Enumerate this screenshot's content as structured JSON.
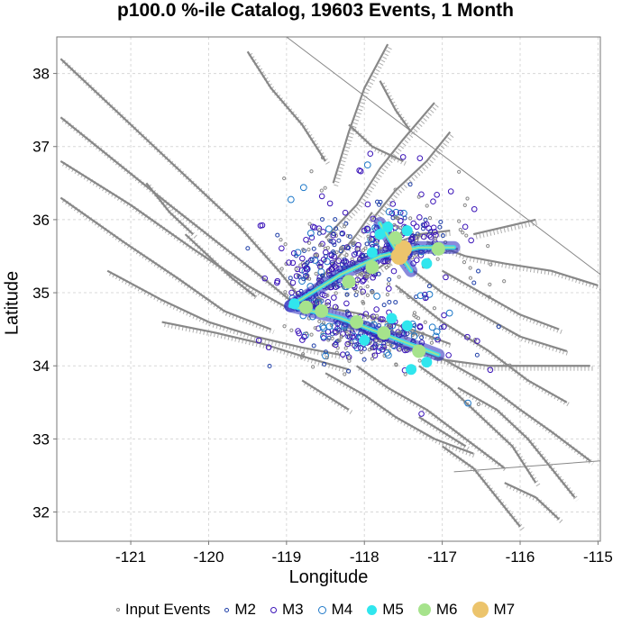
{
  "chart_data": {
    "type": "scatter",
    "title": "p100.0 %-ile Catalog, 19603 Events, 1 Month",
    "xlabel": "Longitude",
    "ylabel": "Latitude",
    "xlim": [
      -121.95,
      -114.97
    ],
    "ylim": [
      31.6,
      38.5
    ],
    "xticks": [
      -121,
      -120,
      -119,
      -118,
      -117,
      -116,
      -115
    ],
    "yticks": [
      32,
      33,
      34,
      35,
      36,
      37,
      38
    ],
    "grid": true,
    "legend_position": "bottom",
    "legend": [
      {
        "label": "Input Events",
        "color": "#888888",
        "style": "hollow",
        "size": 2
      },
      {
        "label": "M2",
        "color": "#1f3fa8",
        "style": "hollow",
        "size": 2.5
      },
      {
        "label": "M3",
        "color": "#3b14b8",
        "style": "hollow",
        "size": 3.5
      },
      {
        "label": "M4",
        "color": "#1e78c8",
        "style": "hollow",
        "size": 4.5
      },
      {
        "label": "M5",
        "color": "#30e6ee",
        "style": "filled",
        "size": 5.5
      },
      {
        "label": "M6",
        "color": "#a6e38c",
        "style": "filled",
        "size": 7
      },
      {
        "label": "M7",
        "color": "#ecc46c",
        "style": "filled",
        "size": 9
      }
    ],
    "faults_color": "#888888",
    "faults": [
      [
        [
          -121.9,
          38.2
        ],
        [
          -121.3,
          37.6
        ],
        [
          -120.8,
          37.1
        ],
        [
          -120.2,
          36.5
        ],
        [
          -119.6,
          35.9
        ],
        [
          -119.1,
          35.3
        ],
        [
          -118.8,
          34.9
        ],
        [
          -118.3,
          34.6
        ],
        [
          -117.6,
          34.3
        ],
        [
          -117.0,
          34.1
        ],
        [
          -116.5,
          33.8
        ],
        [
          -116.0,
          33.4
        ],
        [
          -115.6,
          33.1
        ],
        [
          -115.1,
          32.7
        ]
      ],
      [
        [
          -121.9,
          37.4
        ],
        [
          -121.2,
          36.8
        ],
        [
          -120.5,
          36.2
        ],
        [
          -119.9,
          35.7
        ],
        [
          -119.3,
          35.2
        ],
        [
          -118.9,
          34.85
        ]
      ],
      [
        [
          -121.9,
          36.8
        ],
        [
          -121.0,
          36.2
        ],
        [
          -120.2,
          35.6
        ],
        [
          -119.5,
          35.1
        ],
        [
          -119.0,
          34.8
        ]
      ],
      [
        [
          -121.9,
          36.3
        ],
        [
          -121.1,
          35.7
        ],
        [
          -120.4,
          35.2
        ],
        [
          -119.8,
          34.75
        ],
        [
          -119.2,
          34.5
        ]
      ],
      [
        [
          -121.3,
          35.3
        ],
        [
          -120.6,
          34.9
        ],
        [
          -120.0,
          34.6
        ],
        [
          -119.4,
          34.4
        ],
        [
          -118.8,
          34.25
        ],
        [
          -118.3,
          34.15
        ]
      ],
      [
        [
          -120.6,
          34.6
        ],
        [
          -119.9,
          34.45
        ],
        [
          -119.3,
          34.3
        ],
        [
          -118.7,
          34.1
        ],
        [
          -118.2,
          33.95
        ]
      ],
      [
        [
          -118.95,
          34.8
        ],
        [
          -118.3,
          35.3
        ],
        [
          -117.8,
          35.6
        ],
        [
          -117.3,
          35.8
        ],
        [
          -116.9,
          35.85
        ]
      ],
      [
        [
          -118.5,
          35.75
        ],
        [
          -118.1,
          36.2
        ],
        [
          -117.8,
          36.7
        ],
        [
          -117.5,
          37.1
        ],
        [
          -117.1,
          37.6
        ]
      ],
      [
        [
          -118.4,
          36.5
        ],
        [
          -118.2,
          37.2
        ],
        [
          -118.0,
          37.8
        ],
        [
          -117.7,
          38.4
        ]
      ],
      [
        [
          -119.5,
          38.3
        ],
        [
          -119.2,
          37.8
        ],
        [
          -118.8,
          37.3
        ],
        [
          -118.5,
          36.8
        ]
      ],
      [
        [
          -117.9,
          36.0
        ],
        [
          -117.6,
          36.4
        ],
        [
          -117.2,
          36.8
        ],
        [
          -116.9,
          37.2
        ]
      ],
      [
        [
          -117.2,
          35.7
        ],
        [
          -116.7,
          35.5
        ],
        [
          -116.2,
          35.4
        ],
        [
          -115.6,
          35.3
        ],
        [
          -115.0,
          35.1
        ]
      ],
      [
        [
          -117.5,
          35.4
        ],
        [
          -117.0,
          35.0
        ],
        [
          -116.5,
          34.7
        ],
        [
          -116.0,
          34.4
        ],
        [
          -115.4,
          34.2
        ]
      ],
      [
        [
          -117.6,
          35.1
        ],
        [
          -117.0,
          34.6
        ],
        [
          -116.4,
          34.2
        ],
        [
          -115.9,
          33.8
        ],
        [
          -115.4,
          33.5
        ]
      ],
      [
        [
          -117.0,
          35.3
        ],
        [
          -116.5,
          35.0
        ],
        [
          -116.0,
          34.7
        ],
        [
          -115.5,
          34.5
        ]
      ],
      [
        [
          -118.5,
          33.9
        ],
        [
          -118.0,
          33.6
        ],
        [
          -117.6,
          33.3
        ],
        [
          -117.1,
          33.0
        ],
        [
          -116.6,
          32.8
        ]
      ],
      [
        [
          -118.1,
          34.0
        ],
        [
          -117.7,
          33.7
        ],
        [
          -117.2,
          33.4
        ],
        [
          -116.7,
          33.0
        ],
        [
          -116.2,
          32.6
        ]
      ],
      [
        [
          -117.3,
          34.0
        ],
        [
          -116.9,
          33.7
        ],
        [
          -116.5,
          33.3
        ],
        [
          -116.1,
          32.9
        ],
        [
          -115.8,
          32.4
        ]
      ],
      [
        [
          -116.8,
          33.7
        ],
        [
          -116.3,
          33.4
        ],
        [
          -115.9,
          33.0
        ],
        [
          -115.6,
          32.6
        ],
        [
          -115.3,
          32.2
        ]
      ],
      [
        [
          -118.0,
          35.2
        ],
        [
          -117.6,
          35.5
        ],
        [
          -117.2,
          35.6
        ],
        [
          -116.8,
          35.6
        ]
      ],
      [
        [
          -118.7,
          35.0
        ],
        [
          -118.4,
          35.4
        ],
        [
          -118.1,
          35.8
        ],
        [
          -117.9,
          36.1
        ]
      ],
      [
        [
          -118.9,
          34.9
        ],
        [
          -118.5,
          34.8
        ],
        [
          -118.0,
          34.7
        ],
        [
          -117.4,
          34.5
        ],
        [
          -116.9,
          34.3
        ]
      ],
      [
        [
          -117.1,
          34.1
        ],
        [
          -116.4,
          34.0
        ],
        [
          -115.7,
          34.0
        ],
        [
          -115.1,
          34.0
        ]
      ],
      [
        [
          -117.0,
          32.9
        ],
        [
          -116.6,
          32.6
        ],
        [
          -116.3,
          32.2
        ],
        [
          -116.0,
          31.8
        ]
      ],
      [
        [
          -116.2,
          32.4
        ],
        [
          -115.8,
          32.2
        ],
        [
          -115.5,
          31.9
        ]
      ],
      [
        [
          -120.3,
          35.8
        ],
        [
          -120.0,
          35.5
        ],
        [
          -119.7,
          35.2
        ],
        [
          -119.4,
          34.95
        ]
      ],
      [
        [
          -120.8,
          36.5
        ],
        [
          -120.5,
          36.1
        ],
        [
          -120.2,
          35.8
        ]
      ],
      [
        [
          -118.8,
          33.8
        ],
        [
          -118.5,
          33.6
        ],
        [
          -118.2,
          33.4
        ]
      ],
      [
        [
          -117.3,
          33.3
        ],
        [
          -117.0,
          33.1
        ],
        [
          -116.7,
          32.9
        ]
      ],
      [
        [
          -116.6,
          35.8
        ],
        [
          -116.2,
          35.9
        ],
        [
          -115.8,
          36.0
        ]
      ],
      [
        [
          -118.2,
          37.3
        ],
        [
          -117.9,
          37.0
        ],
        [
          -117.5,
          36.8
        ]
      ],
      [
        [
          -117.8,
          37.9
        ],
        [
          -117.6,
          37.5
        ],
        [
          -117.4,
          37.2
        ]
      ]
    ],
    "region_boundary": [
      [
        -119.0,
        38.5
      ],
      [
        -114.97,
        35.25
      ],
      [
        -114.97,
        32.7
      ],
      [
        -116.85,
        32.55
      ]
    ],
    "input_events": {
      "clusters": [
        {
          "center": [
            -118.3,
            35.35
          ],
          "spread": [
            0.55,
            0.45
          ],
          "count": 260
        },
        {
          "center": [
            -117.9,
            34.4
          ],
          "spread": [
            0.75,
            0.28
          ],
          "count": 240
        },
        {
          "center": [
            -117.5,
            35.75
          ],
          "spread": [
            0.45,
            0.3
          ],
          "count": 160
        },
        {
          "center": [
            -118.7,
            34.85
          ],
          "spread": [
            0.2,
            0.15
          ],
          "count": 70
        },
        {
          "center": [
            -117.6,
            35.0
          ],
          "spread": [
            1.6,
            1.3
          ],
          "count": 110
        },
        {
          "center": [
            -118.2,
            36.2
          ],
          "spread": [
            1.2,
            1.0
          ],
          "count": 45
        }
      ],
      "seed": 17
    },
    "events": [
      {
        "lon": -117.5,
        "lat": 35.6,
        "mag": "M7"
      },
      {
        "lon": -117.55,
        "lat": 35.5,
        "mag": "M7"
      },
      {
        "lon": -117.9,
        "lat": 35.35,
        "mag": "M6"
      },
      {
        "lon": -118.2,
        "lat": 35.15,
        "mag": "M6"
      },
      {
        "lon": -118.75,
        "lat": 34.8,
        "mag": "M6"
      },
      {
        "lon": -118.55,
        "lat": 34.75,
        "mag": "M6"
      },
      {
        "lon": -118.1,
        "lat": 34.6,
        "mag": "M6"
      },
      {
        "lon": -117.75,
        "lat": 34.45,
        "mag": "M6"
      },
      {
        "lon": -117.3,
        "lat": 34.2,
        "mag": "M6"
      },
      {
        "lon": -117.6,
        "lat": 35.75,
        "mag": "M6"
      },
      {
        "lon": -117.05,
        "lat": 35.6,
        "mag": "M6"
      },
      {
        "lon": -117.8,
        "lat": 35.8,
        "mag": "M5"
      },
      {
        "lon": -117.7,
        "lat": 35.9,
        "mag": "M5"
      },
      {
        "lon": -117.45,
        "lat": 35.85,
        "mag": "M5"
      },
      {
        "lon": -117.2,
        "lat": 35.4,
        "mag": "M5"
      },
      {
        "lon": -117.9,
        "lat": 35.55,
        "mag": "M5"
      },
      {
        "lon": -117.65,
        "lat": 34.65,
        "mag": "M5"
      },
      {
        "lon": -117.45,
        "lat": 34.55,
        "mag": "M5"
      },
      {
        "lon": -117.4,
        "lat": 33.95,
        "mag": "M5"
      },
      {
        "lon": -118.0,
        "lat": 34.35,
        "mag": "M5"
      },
      {
        "lon": -117.2,
        "lat": 34.05,
        "mag": "M5"
      },
      {
        "lon": -118.9,
        "lat": 34.85,
        "mag": "M5"
      }
    ]
  }
}
